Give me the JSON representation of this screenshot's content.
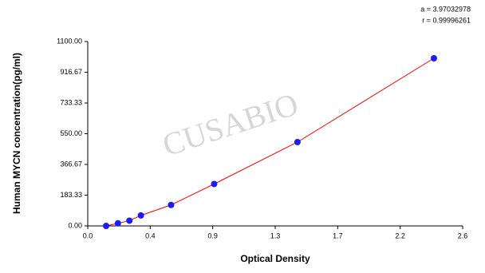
{
  "chart_data": {
    "type": "scatter",
    "x_label": "Optical Density",
    "y_label": "Human MYCN concentration(pg/ml)",
    "annotations": [
      "a = 3.97032978",
      "r = 0.99996261"
    ],
    "watermark": "CUSABIO",
    "x": [
      0.128,
      0.21,
      0.29,
      0.37,
      0.58,
      0.88,
      1.46,
      2.41
    ],
    "series": [
      {
        "color": "#1a1aff",
        "line_color": "#ff0000",
        "values": [
          0,
          15.63,
          31.25,
          62.5,
          125,
          250,
          500,
          1000
        ]
      }
    ],
    "xlim": [
      0,
      2.61
    ],
    "xticks": [
      {
        "value": 0,
        "label": "0.0"
      },
      {
        "value": 0.435,
        "label": "0.4"
      },
      {
        "value": 0.87,
        "label": "0.9"
      },
      {
        "value": 1.305,
        "label": "1.3"
      },
      {
        "value": 1.74,
        "label": "1.7"
      },
      {
        "value": 2.175,
        "label": "2.2"
      },
      {
        "value": 2.61,
        "label": "2.6"
      }
    ],
    "ylim": [
      0,
      1100
    ],
    "yticks": [
      {
        "value": 0,
        "label": "0.00"
      },
      {
        "value": 183.33,
        "label": "183.33"
      },
      {
        "value": 366.67,
        "label": "366.67"
      },
      {
        "value": 550,
        "label": "550.00"
      },
      {
        "value": 733.33,
        "label": "733.33"
      },
      {
        "value": 916.67,
        "label": "916.67"
      },
      {
        "value": 1100,
        "label": "1100.00"
      }
    ]
  }
}
